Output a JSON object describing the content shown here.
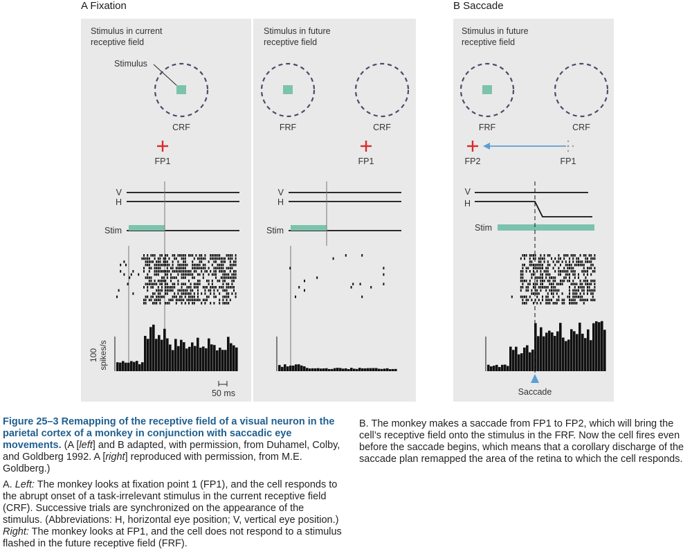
{
  "panels": {
    "a_label": "A  Fixation",
    "b_label": "B  Saccade",
    "a_left_heading": [
      "Stimulus in current",
      "receptive field"
    ],
    "a_right_heading": [
      "Stimulus in future",
      "receptive field"
    ],
    "b_heading": [
      "Stimulus in future",
      "receptive field"
    ],
    "stimulus_label": "Stimulus",
    "crf": "CRF",
    "frf": "FRF",
    "fp1": "FP1",
    "fp2": "FP2",
    "v": "V",
    "h": "H",
    "stim": "Stim",
    "yaxis_value": "100",
    "yaxis_unit": "spikes/s",
    "scale": "50 ms",
    "saccade": "Saccade"
  },
  "colors": {
    "panel_bg": "#e9e9e9",
    "stimulus": "#7cc3ad",
    "fixation_cross": "#d92b2b",
    "arrow": "#5b9fd6",
    "caption_title": "#1f5f8f"
  },
  "caption": {
    "figure_number": "Figure 25–3",
    "title": "Remapping of the receptive field of a visual neuron in the parietal cortex of a monkey in conjunction with saccadic eye movements.",
    "credit_1": "(A [",
    "credit_left": "left",
    "credit_2": "] and B adapted, with permission, from Duhamel, Colby, and Goldberg 1992. A [",
    "credit_right": "right",
    "credit_3": "] reproduced with permission, from M.E. Goldberg.)",
    "a_1": "A. ",
    "a_left": "Left:",
    "a_2": " The monkey looks at fixation point 1 (",
    "a_fp1": "FP1",
    "a_3": "), and the cell responds to the abrupt onset of a task-irrelevant stimulus in the current receptive field (",
    "a_crf": "CRF",
    "a_4": "). Successive trials are synchronized on the appearance of the stimulus. (Abbreviations: ",
    "a_h": "H",
    "a_5": ", horizontal eye position; ",
    "a_v": "V",
    "a_6": ", vertical eye position.) ",
    "a_right": "Right:",
    "a_7": " The monkey looks at FP1, and the cell does not respond to a stimulus flashed in the future receptive field (",
    "a_frf": "FRF",
    "a_8": ").",
    "b_text": "B. The monkey makes a saccade from FP1 to FP2, which will bring the cell’s receptive field onto the stimulus in the FRF. Now the cell fires even before the saccade begins, which means that a corollary discharge of the saccade plan remapped the area of the retina to which the cell responds."
  }
}
